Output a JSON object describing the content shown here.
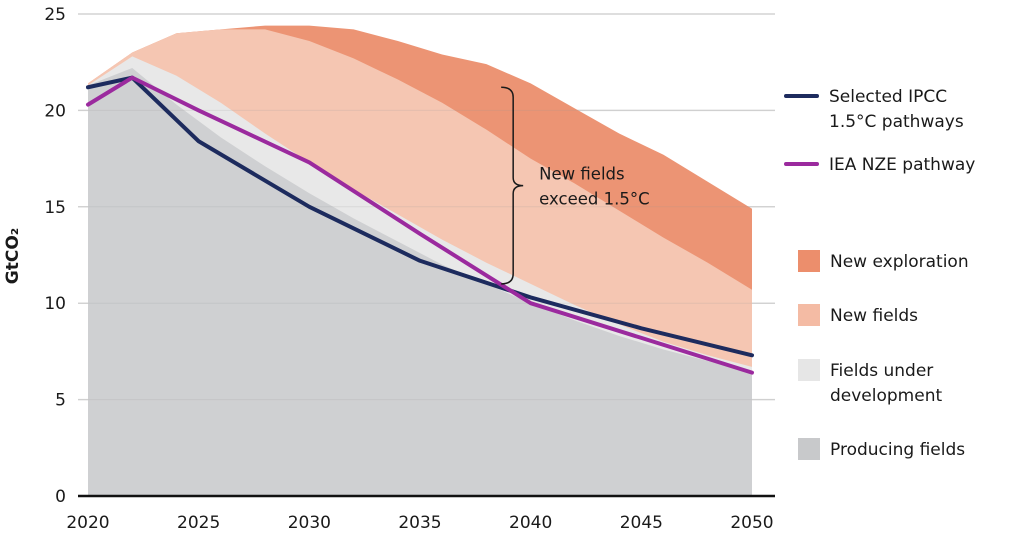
{
  "chart_data": {
    "type": "area",
    "title": "",
    "xlabel": "",
    "ylabel": "GtCO₂",
    "xlim": [
      2020,
      2050
    ],
    "ylim": [
      0,
      25
    ],
    "grid": true,
    "x_ticks": [
      "2020",
      "2025",
      "2030",
      "2035",
      "2040",
      "2045",
      "2050"
    ],
    "y_ticks": [
      "0",
      "5",
      "10",
      "15",
      "20",
      "25"
    ],
    "x": [
      2020,
      2022,
      2024,
      2026,
      2028,
      2030,
      2032,
      2034,
      2036,
      2038,
      2040,
      2042,
      2044,
      2046,
      2048,
      2050
    ],
    "areas": [
      {
        "name": "Producing fields",
        "color": "#cfd0d2",
        "values": [
          21.3,
          22.2,
          20.3,
          18.6,
          17.1,
          15.7,
          14.4,
          13.2,
          12.0,
          11.0,
          10.0,
          9.1,
          8.3,
          7.6,
          7.0,
          6.4
        ]
      },
      {
        "name": "Fields under development",
        "color": "#e8e8e8",
        "values": [
          21.3,
          22.8,
          21.8,
          20.4,
          18.8,
          17.3,
          15.9,
          14.6,
          13.3,
          12.1,
          11.0,
          9.9,
          8.9,
          8.0,
          7.3,
          6.7
        ]
      },
      {
        "name": "New fields",
        "color": "#f5c6b2",
        "values": [
          21.4,
          23.0,
          24.0,
          24.2,
          24.2,
          23.6,
          22.7,
          21.6,
          20.4,
          19.0,
          17.5,
          16.2,
          14.8,
          13.4,
          12.1,
          10.7
        ]
      },
      {
        "name": "New exploration",
        "color": "#ec9474",
        "values": [
          21.4,
          23.0,
          24.0,
          24.2,
          24.4,
          24.4,
          24.2,
          23.6,
          22.9,
          22.4,
          21.4,
          20.1,
          18.8,
          17.7,
          16.3,
          14.9
        ]
      }
    ],
    "series": [
      {
        "name": "Selected IPCC 1.5°C pathways",
        "color": "#1d2b5e",
        "x": [
          2020,
          2022,
          2025,
          2030,
          2035,
          2040,
          2045,
          2050
        ],
        "values": [
          21.2,
          21.7,
          18.4,
          15.0,
          12.2,
          10.3,
          8.7,
          7.3
        ]
      },
      {
        "name": "IEA NZE pathway",
        "color": "#9b2a9e",
        "x": [
          2020,
          2022,
          2025,
          2030,
          2035,
          2040,
          2045,
          2050
        ],
        "values": [
          20.3,
          21.7,
          20.0,
          17.3,
          13.6,
          10.0,
          8.2,
          6.4
        ]
      }
    ],
    "annotation": {
      "lines": [
        "New fields",
        "exceed 1.5°C"
      ],
      "x": 2039.3,
      "y_range": [
        11.0,
        21.2
      ]
    },
    "legend": {
      "position": "right",
      "lines": [
        {
          "label_lines": [
            "Selected IPCC",
            "1.5°C pathways"
          ],
          "color": "#1d2b5e"
        },
        {
          "label_lines": [
            "IEA NZE pathway"
          ],
          "color": "#9b2a9e"
        }
      ],
      "swatches": [
        {
          "label_lines": [
            "New exploration"
          ],
          "color": "#ec8e6c"
        },
        {
          "label_lines": [
            "New fields"
          ],
          "color": "#f4bba4"
        },
        {
          "label_lines": [
            "Fields under",
            "development"
          ],
          "color": "#e6e6e6"
        },
        {
          "label_lines": [
            "Producing fields"
          ],
          "color": "#c8c9cb"
        }
      ]
    }
  }
}
